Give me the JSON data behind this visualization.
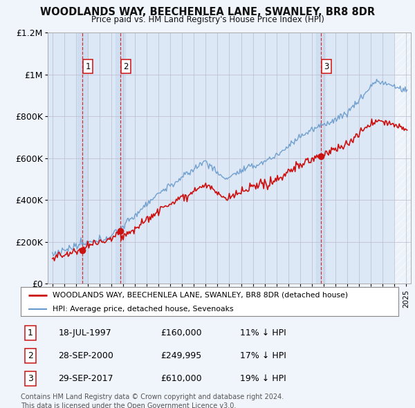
{
  "title": "WOODLANDS WAY, BEECHENLEA LANE, SWANLEY, BR8 8DR",
  "subtitle": "Price paid vs. HM Land Registry's House Price Index (HPI)",
  "legend_line1": "WOODLANDS WAY, BEECHENLEA LANE, SWANLEY, BR8 8DR (detached house)",
  "legend_line2": "HPI: Average price, detached house, Sevenoaks",
  "transactions": [
    {
      "num": 1,
      "date": "18-JUL-1997",
      "price": 160000,
      "price_str": "£160,000",
      "pct": "11%",
      "year": 1997.55
    },
    {
      "num": 2,
      "date": "28-SEP-2000",
      "price": 249995,
      "price_str": "£249,995",
      "pct": "17%",
      "year": 2000.75
    },
    {
      "num": 3,
      "date": "29-SEP-2017",
      "price": 610000,
      "price_str": "£610,000",
      "pct": "19%",
      "year": 2017.75
    }
  ],
  "footer1": "Contains HM Land Registry data © Crown copyright and database right 2024.",
  "footer2": "This data is licensed under the Open Government Licence v3.0.",
  "background_color": "#f0f4fb",
  "plot_bg": "#dce8f5",
  "stripe_color": "#ccdcf0",
  "red_line_color": "#cc1111",
  "blue_line_color": "#6699cc",
  "grid_color": "#bbbbcc",
  "dashed_color": "#cc1111",
  "ylim_max": 1200000,
  "xlim_start": 1994.6,
  "xlim_end": 2025.4
}
